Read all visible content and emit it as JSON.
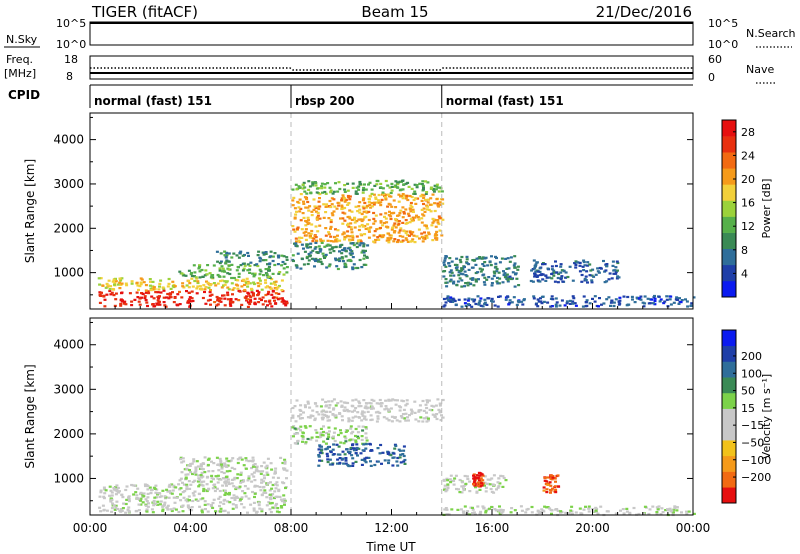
{
  "header": {
    "station": "TIGER (fitACF)",
    "beam": "Beam 15",
    "date": "21/Dec/2016"
  },
  "top_strips": {
    "nsky_label": "N.Sky",
    "nsearch_label": "N.Search",
    "nsky_ticks": [
      "10^5",
      "10^0"
    ],
    "nsearch_ticks": [
      "10^5",
      "10^0"
    ],
    "freq_label_line1": "Freq.",
    "freq_label_line2": "[MHz]",
    "freq_ticks": [
      "18",
      "8"
    ],
    "nave_label": "Nave",
    "nave_ticks": [
      "60",
      "0"
    ],
    "cpid_label": "CPID",
    "cpid_segments": [
      {
        "label": "normal (fast) 151",
        "start": 0,
        "end": 8
      },
      {
        "label": "rbsp 200",
        "start": 8,
        "end": 14
      },
      {
        "label": "normal (fast) 151",
        "start": 14,
        "end": 24
      }
    ]
  },
  "colors": {
    "power_scale": [
      "#0b1bf0",
      "#1f3fa8",
      "#2f6e9a",
      "#3a8a55",
      "#56b04a",
      "#9bd23a",
      "#f2d03a",
      "#f59a1a",
      "#f26a12",
      "#e8300f",
      "#e60f0f"
    ],
    "velocity_scale": [
      "#e60f0f",
      "#f26a12",
      "#f59a1a",
      "#f2c21a",
      "#c8c8c8",
      "#c8c8c8",
      "#7cd24a",
      "#3a8a55",
      "#2f6e9a",
      "#1f3fa8",
      "#0b1bf0"
    ]
  },
  "chart_data": [
    {
      "type": "heatmap",
      "title": "",
      "xlabel": "",
      "ylabel": "Slant Range [km]",
      "xlim": [
        0,
        24
      ],
      "ylim": [
        180,
        4600
      ],
      "x_ticks": [
        "00:00",
        "04:00",
        "08:00",
        "12:00",
        "16:00",
        "20:00",
        "00:00"
      ],
      "y_ticks": [
        1000,
        2000,
        3000,
        4000
      ],
      "colorbar": {
        "label": "Power [dB]",
        "ticks": [
          4,
          8,
          12,
          16,
          20,
          24,
          28
        ],
        "range": [
          0,
          30
        ]
      },
      "regions": [
        {
          "x": [
            0.3,
            7.8
          ],
          "y": [
            250,
            620
          ],
          "value": 27
        },
        {
          "x": [
            0.3,
            7.8
          ],
          "y": [
            620,
            900
          ],
          "value": 18
        },
        {
          "x": [
            3.5,
            7.8
          ],
          "y": [
            900,
            1200
          ],
          "value": 12
        },
        {
          "x": [
            5.0,
            7.8
          ],
          "y": [
            1200,
            1500
          ],
          "value": 9
        },
        {
          "x": [
            8.0,
            14.0
          ],
          "y": [
            1700,
            2800
          ],
          "value": 20
        },
        {
          "x": [
            8.0,
            14.0
          ],
          "y": [
            2800,
            3100
          ],
          "value": 12
        },
        {
          "x": [
            8.0,
            11.0
          ],
          "y": [
            1100,
            1700
          ],
          "value": 9
        },
        {
          "x": [
            14.0,
            17.0
          ],
          "y": [
            700,
            1400
          ],
          "value": 8
        },
        {
          "x": [
            14.0,
            24.0
          ],
          "y": [
            250,
            500
          ],
          "value": 5
        },
        {
          "x": [
            17.5,
            21.0
          ],
          "y": [
            800,
            1300
          ],
          "value": 6
        }
      ]
    },
    {
      "type": "heatmap",
      "title": "",
      "xlabel": "Time UT",
      "ylabel": "Slant Range [km]",
      "xlim": [
        0,
        24
      ],
      "ylim": [
        180,
        4600
      ],
      "x_ticks": [
        "00:00",
        "04:00",
        "08:00",
        "12:00",
        "16:00",
        "20:00",
        "00:00"
      ],
      "y_ticks": [
        1000,
        2000,
        3000,
        4000
      ],
      "colorbar": {
        "label": "Velocity [m s⁻¹]",
        "ticks": [
          -200,
          -100,
          -50,
          -15,
          15,
          50,
          100,
          200
        ],
        "range": [
          -250,
          250
        ]
      },
      "regions": [
        {
          "x": [
            0.3,
            7.8
          ],
          "y": [
            250,
            900
          ],
          "value": 0
        },
        {
          "x": [
            3.5,
            7.8
          ],
          "y": [
            900,
            1500
          ],
          "value": 0
        },
        {
          "x": [
            8.0,
            14.0
          ],
          "y": [
            2300,
            2800
          ],
          "value": -20
        },
        {
          "x": [
            8.0,
            11.0
          ],
          "y": [
            1800,
            2200
          ],
          "value": 30
        },
        {
          "x": [
            9.0,
            12.5
          ],
          "y": [
            1300,
            1800
          ],
          "value": 150
        },
        {
          "x": [
            14.0,
            16.5
          ],
          "y": [
            700,
            1100
          ],
          "value": -5
        },
        {
          "x": [
            15.2,
            15.6
          ],
          "y": [
            800,
            1150
          ],
          "value": -220
        },
        {
          "x": [
            18.0,
            18.6
          ],
          "y": [
            700,
            1100
          ],
          "value": -200
        },
        {
          "x": [
            14.0,
            24.0
          ],
          "y": [
            200,
            400
          ],
          "value": 0
        }
      ]
    }
  ]
}
